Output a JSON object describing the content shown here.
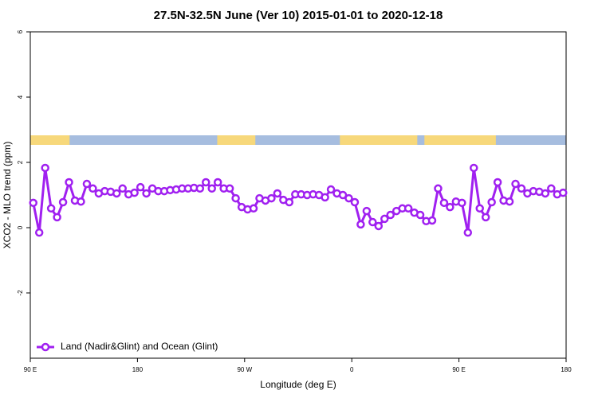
{
  "chart_data": {
    "type": "line",
    "title": "27.5N-32.5N June (Ver 10)   2015-01-01 to 2020-12-18",
    "x_label": "Longitude (deg E)",
    "y_label": "XCO2 - MLO trend (ppm)",
    "xlim": [
      90,
      540
    ],
    "ylim": [
      -4,
      6
    ],
    "xticks": [
      {
        "value": 90,
        "label": "90 E"
      },
      {
        "value": 180,
        "label": "180"
      },
      {
        "value": 270,
        "label": "90 W"
      },
      {
        "value": 360,
        "label": "0"
      },
      {
        "value": 450,
        "label": "90 E"
      },
      {
        "value": 540,
        "label": "180"
      }
    ],
    "yticks": [
      -2,
      0,
      2,
      4,
      6
    ],
    "grid": false,
    "legend": "lower left",
    "land_color": "#f7d87b",
    "ocean_color": "#a6bddf",
    "land": [
      [
        90,
        123
      ],
      [
        247,
        279
      ],
      [
        350,
        415
      ],
      [
        421,
        481
      ]
    ],
    "x": [
      92.5,
      97.5,
      102.5,
      107.5,
      112.5,
      117.5,
      122.5,
      127.5,
      132.5,
      137.5,
      142.5,
      147.5,
      152.5,
      157.5,
      162.5,
      167.5,
      172.5,
      177.5,
      182.5,
      187.5,
      192.5,
      197.5,
      202.5,
      207.5,
      212.5,
      217.5,
      222.5,
      227.5,
      232.5,
      237.5,
      242.5,
      247.5,
      252.5,
      257.5,
      262.5,
      267.5,
      272.5,
      277.5,
      282.5,
      287.5,
      292.5,
      297.5,
      302.5,
      307.5,
      312.5,
      317.5,
      322.5,
      327.5,
      332.5,
      337.5,
      342.5,
      347.5,
      352.5,
      357.5,
      362.5,
      367.5,
      372.5,
      377.5,
      382.5,
      387.5,
      392.5,
      397.5,
      402.5,
      407.5,
      412.5,
      417.5,
      422.5,
      427.5,
      432.5,
      437.5,
      442.5,
      447.5,
      452.5,
      457.5,
      462.5,
      467.5,
      472.5,
      477.5,
      482.5,
      487.5,
      492.5,
      497.5,
      502.5,
      507.5,
      512.5,
      517.5,
      522.5,
      527.5,
      532.5,
      537.5
    ],
    "series": [
      {
        "name": "Land (Nadir&Glint) and Ocean (Glint)",
        "color": "#a020f0",
        "values": [
          0.76,
          -0.15,
          1.83,
          0.59,
          0.32,
          0.78,
          1.39,
          0.83,
          0.8,
          1.34,
          1.2,
          1.05,
          1.12,
          1.1,
          1.05,
          1.2,
          1.02,
          1.07,
          1.24,
          1.05,
          1.2,
          1.12,
          1.12,
          1.15,
          1.17,
          1.2,
          1.2,
          1.22,
          1.2,
          1.39,
          1.2,
          1.39,
          1.2,
          1.2,
          0.9,
          0.63,
          0.56,
          0.59,
          0.9,
          0.83,
          0.9,
          1.05,
          0.85,
          0.78,
          1.02,
          1.02,
          1.0,
          1.02,
          1.0,
          0.93,
          1.17,
          1.05,
          1.0,
          0.9,
          0.78,
          0.1,
          0.51,
          0.17,
          0.05,
          0.27,
          0.39,
          0.51,
          0.59,
          0.59,
          0.46,
          0.39,
          0.2,
          0.22,
          1.2,
          0.76,
          0.63,
          0.8,
          0.76,
          -0.15,
          1.83,
          0.59,
          0.32,
          0.78,
          1.39,
          0.83,
          0.8,
          1.34,
          1.2,
          1.05,
          1.12,
          1.1,
          1.05,
          1.2,
          1.02,
          1.07
        ]
      }
    ]
  }
}
